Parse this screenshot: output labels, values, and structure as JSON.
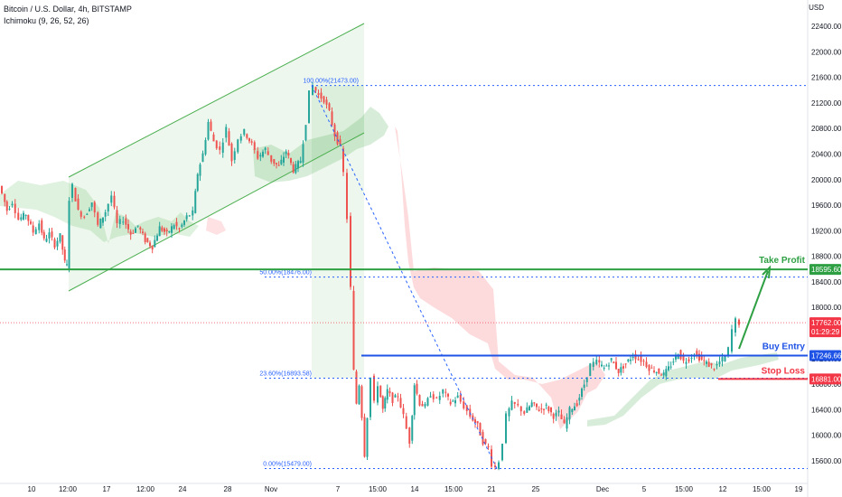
{
  "header": {
    "symbol": "Bitcoin / U.S. Dollar, 4h, BITSTAMP",
    "indicator": "Ichimoku (9, 26, 52, 26)"
  },
  "currency": "USD",
  "chart_data": {
    "type": "candlestick",
    "price_axis_ticks": [
      22400,
      22000,
      21600,
      21200,
      20800,
      20400,
      20000,
      19600,
      19200,
      18800,
      18400,
      18000,
      17600,
      17200,
      16800,
      16400,
      16000,
      15600
    ],
    "ylim": [
      15450,
      22600
    ],
    "time_axis_labels": [
      "10",
      "12:00",
      "17",
      "12:00",
      "24",
      "28",
      "Nov",
      "7",
      "15:00",
      "14",
      "15:00",
      "21",
      "25",
      "Dec",
      "5",
      "15:00",
      "12",
      "15:00",
      "19"
    ],
    "fibonacci": [
      {
        "label": "100.00%(21473.00)",
        "price": 21473
      },
      {
        "label": "50.00%(18476.00)",
        "price": 18476
      },
      {
        "label": "23.60%(16893.58)",
        "price": 16893.58
      },
      {
        "label": "0.00%(15479.00)",
        "price": 15479
      }
    ],
    "levels": [
      {
        "name": "Take Profit",
        "price": 18595.6,
        "label": "18595.60",
        "color": "#2ea043"
      },
      {
        "name": "Buy Entry",
        "price": 17246.66,
        "label": "17246.66",
        "color": "#1e53e5"
      },
      {
        "name": "Stop Loss",
        "price": 16881.0,
        "label": "16881.00",
        "color": "#f23645"
      }
    ],
    "current_price": {
      "label": "17762.00",
      "countdown": "01:29:29",
      "price": 17762,
      "color": "#f23645"
    },
    "price_path": [
      [
        0,
        19900
      ],
      [
        4,
        19780
      ],
      [
        9,
        19520
      ],
      [
        15,
        19650
      ],
      [
        22,
        19380
      ],
      [
        30,
        19460
      ],
      [
        38,
        19180
      ],
      [
        45,
        19320
      ],
      [
        50,
        19050
      ],
      [
        56,
        19150
      ],
      [
        62,
        18980
      ],
      [
        68,
        19120
      ],
      [
        73,
        18700
      ],
      [
        75,
        18650
      ],
      [
        78,
        19700
      ],
      [
        82,
        19900
      ],
      [
        88,
        19500
      ],
      [
        95,
        19420
      ],
      [
        103,
        19650
      ],
      [
        110,
        19280
      ],
      [
        118,
        19500
      ],
      [
        125,
        19750
      ],
      [
        131,
        19300
      ],
      [
        138,
        19380
      ],
      [
        146,
        19150
      ],
      [
        154,
        19280
      ],
      [
        162,
        19050
      ],
      [
        170,
        18950
      ],
      [
        178,
        19250
      ],
      [
        186,
        19150
      ],
      [
        194,
        19300
      ],
      [
        200,
        19220
      ],
      [
        208,
        19420
      ],
      [
        215,
        19480
      ],
      [
        220,
        20100
      ],
      [
        226,
        20400
      ],
      [
        232,
        20900
      ],
      [
        238,
        20600
      ],
      [
        245,
        20450
      ],
      [
        252,
        20800
      ],
      [
        258,
        20300
      ],
      [
        265,
        20650
      ],
      [
        272,
        20750
      ],
      [
        280,
        20550
      ],
      [
        287,
        20350
      ],
      [
        295,
        20480
      ],
      [
        302,
        20300
      ],
      [
        310,
        20200
      ],
      [
        318,
        20450
      ],
      [
        326,
        20150
      ],
      [
        334,
        20300
      ],
      [
        340,
        20900
      ],
      [
        344,
        21350
      ],
      [
        348,
        21470
      ],
      [
        354,
        21320
      ],
      [
        360,
        21250
      ],
      [
        366,
        21050
      ],
      [
        372,
        20700
      ],
      [
        378,
        20500
      ],
      [
        382,
        20100
      ],
      [
        386,
        19400
      ],
      [
        390,
        18300
      ],
      [
        393,
        17000
      ],
      [
        396,
        16500
      ],
      [
        399,
        16800
      ],
      [
        402,
        16300
      ],
      [
        405,
        15700
      ],
      [
        408,
        16300
      ],
      [
        412,
        16900
      ],
      [
        416,
        16500
      ],
      [
        420,
        16800
      ],
      [
        425,
        16400
      ],
      [
        430,
        16700
      ],
      [
        436,
        16550
      ],
      [
        442,
        16620
      ],
      [
        448,
        16300
      ],
      [
        455,
        15900
      ],
      [
        460,
        16800
      ],
      [
        466,
        16500
      ],
      [
        472,
        16450
      ],
      [
        478,
        16650
      ],
      [
        485,
        16550
      ],
      [
        492,
        16700
      ],
      [
        500,
        16500
      ],
      [
        508,
        16600
      ],
      [
        515,
        16450
      ],
      [
        522,
        16300
      ],
      [
        530,
        16150
      ],
      [
        536,
        15900
      ],
      [
        542,
        15800
      ],
      [
        546,
        15550
      ],
      [
        550,
        15500
      ],
      [
        554,
        15600
      ],
      [
        558,
        15900
      ],
      [
        562,
        16300
      ],
      [
        568,
        16500
      ],
      [
        575,
        16450
      ],
      [
        582,
        16350
      ],
      [
        590,
        16500
      ],
      [
        598,
        16400
      ],
      [
        606,
        16450
      ],
      [
        614,
        16300
      ],
      [
        620,
        16350
      ],
      [
        626,
        16150
      ],
      [
        632,
        16400
      ],
      [
        640,
        16500
      ],
      [
        648,
        16800
      ],
      [
        655,
        17100
      ],
      [
        662,
        17150
      ],
      [
        670,
        17050
      ],
      [
        678,
        17180
      ],
      [
        686,
        17000
      ],
      [
        694,
        17120
      ],
      [
        702,
        17250
      ],
      [
        708,
        17200
      ],
      [
        714,
        17150
      ],
      [
        720,
        17050
      ],
      [
        728,
        17000
      ],
      [
        736,
        16950
      ],
      [
        744,
        17100
      ],
      [
        752,
        17300
      ],
      [
        758,
        17150
      ],
      [
        764,
        17200
      ],
      [
        770,
        17280
      ],
      [
        778,
        17180
      ],
      [
        786,
        17100
      ],
      [
        792,
        17050
      ],
      [
        798,
        17150
      ],
      [
        804,
        17220
      ],
      [
        808,
        17350
      ],
      [
        812,
        17650
      ],
      [
        816,
        17800
      ],
      [
        820,
        17760
      ]
    ]
  }
}
